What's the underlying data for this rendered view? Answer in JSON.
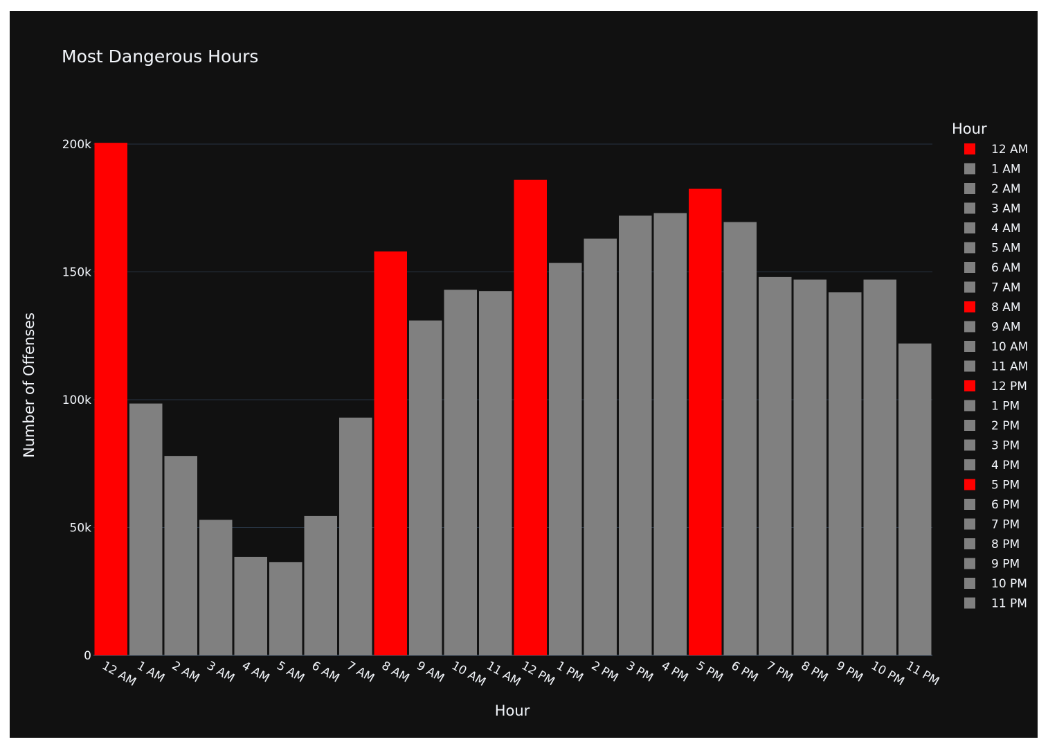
{
  "chart_data": {
    "type": "bar",
    "title": "Most Dangerous Hours",
    "xlabel": "Hour",
    "ylabel": "Number of Offenses",
    "ylim": [
      0,
      200000
    ],
    "y_ticks": [
      0,
      50000,
      100000,
      150000,
      200000
    ],
    "y_tick_labels": [
      "0",
      "50k",
      "100k",
      "150k",
      "200k"
    ],
    "grid": true,
    "legend_title": "Hour",
    "legend_position": "right",
    "colors": {
      "highlight": "#ff0000",
      "normal": "#808080",
      "background": "#111111",
      "grid": "#283442",
      "text": "#f2f5fa"
    },
    "categories": [
      "12 AM",
      "1 AM",
      "2 AM",
      "3 AM",
      "4 AM",
      "5 AM",
      "6 AM",
      "7 AM",
      "8 AM",
      "9 AM",
      "10 AM",
      "11 AM",
      "12 PM",
      "1 PM",
      "2 PM",
      "3 PM",
      "4 PM",
      "5 PM",
      "6 PM",
      "7 PM",
      "8 PM",
      "9 PM",
      "10 PM",
      "11 PM"
    ],
    "values": [
      200500,
      98500,
      78000,
      53000,
      38500,
      36500,
      54500,
      93000,
      158000,
      131000,
      143000,
      142500,
      186000,
      153500,
      163000,
      172000,
      173000,
      182500,
      169500,
      148000,
      147000,
      142000,
      147000,
      122000
    ],
    "highlighted": [
      "12 AM",
      "8 AM",
      "12 PM",
      "5 PM"
    ]
  }
}
